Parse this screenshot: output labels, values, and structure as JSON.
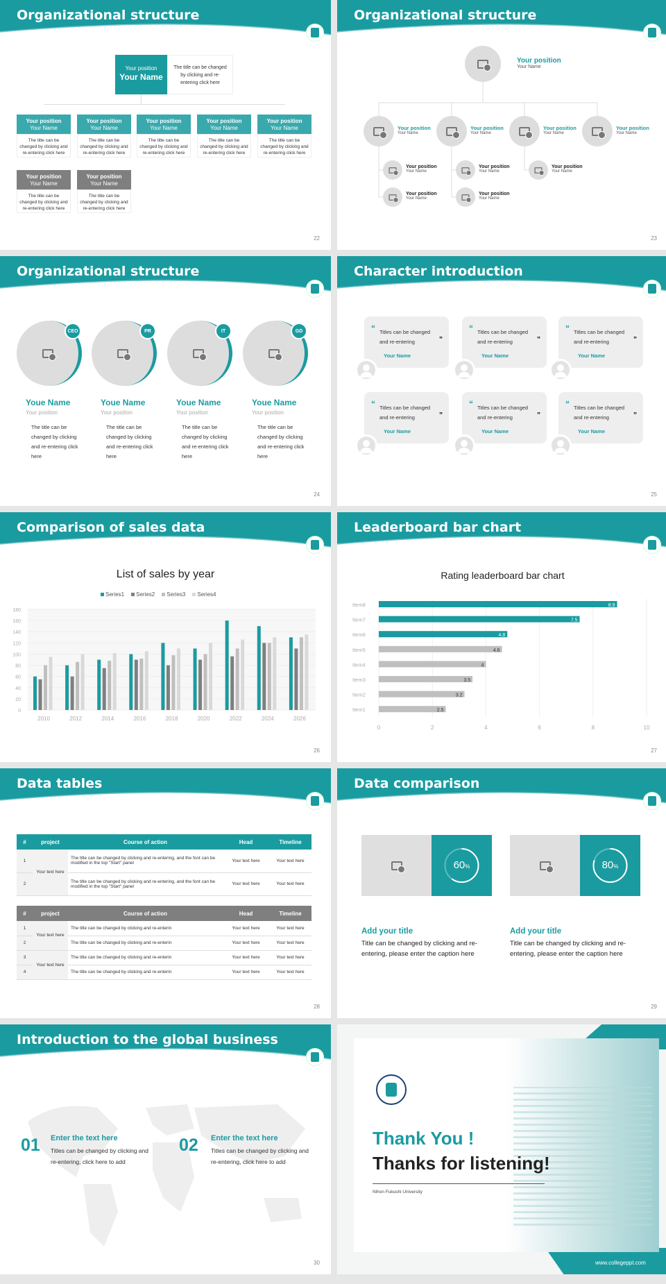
{
  "colors": {
    "accent": "#1a9ba0",
    "gray": "#7f7f7f",
    "light": "#e0e0e0"
  },
  "slides": {
    "s22": {
      "title": "Organizational structure",
      "page": "22",
      "top": {
        "position": "Your position",
        "name": "Your Name",
        "desc": "The title can be changed by clicking and re-entering click here"
      },
      "row1": [
        {
          "position": "Your position",
          "name": "Your Name",
          "desc": "The title can be changed by clicking and re-entering click here"
        },
        {
          "position": "Your position",
          "name": "Your Name",
          "desc": "The title can be changed by clicking and re-entering click here"
        },
        {
          "position": "Your position",
          "name": "Your Name",
          "desc": "The title can be changed by clicking and re-entering click here"
        },
        {
          "position": "Your position",
          "name": "Your Name",
          "desc": "The title can be changed by clicking and re-entering click here"
        },
        {
          "position": "Your position",
          "name": "Your Name",
          "desc": "The title can be changed by clicking and re-entering click here"
        }
      ],
      "row2": [
        {
          "position": "Your position",
          "name": "Your Name",
          "desc": "The title can be changed by clicking and re-entering click here"
        },
        {
          "position": "Your position",
          "name": "Your Name",
          "desc": "The title can be changed by clicking and re-entering click here"
        }
      ]
    },
    "s23": {
      "title": "Organizational structure",
      "page": "23",
      "top": {
        "position": "Your position",
        "name": "Your Name"
      },
      "level2": [
        {
          "position": "Your position",
          "name": "Your Name"
        },
        {
          "position": "Your position",
          "name": "Your Name"
        },
        {
          "position": "Your position",
          "name": "Your Name"
        },
        {
          "position": "Your position",
          "name": "Your Name"
        }
      ],
      "level3": [
        {
          "position": "Your position",
          "name": "Your Name"
        },
        {
          "position": "Your position",
          "name": "Your Name"
        },
        {
          "position": "Your position",
          "name": "Your Name"
        },
        {
          "position": "Your position",
          "name": "Your Name"
        },
        {
          "position": "Your position",
          "name": "Your Name"
        }
      ]
    },
    "s24": {
      "title": "Organizational structure",
      "page": "24",
      "people": [
        {
          "badge": "CEO",
          "name": "Youe Name",
          "position": "Your position",
          "desc": "The title can be changed by clicking and re-entering click here"
        },
        {
          "badge": "PR",
          "name": "Youe Name",
          "position": "Your position",
          "desc": "The title can be changed by clicking and re-entering click here"
        },
        {
          "badge": "IT",
          "name": "Youe Name",
          "position": "Your position",
          "desc": "The title can be changed by clicking and re-entering click here"
        },
        {
          "badge": "GD",
          "name": "Youe Name",
          "position": "Your position",
          "desc": "The title can be changed by clicking and re-entering click here"
        }
      ]
    },
    "s25": {
      "title": "Character introduction",
      "page": "25",
      "cards": [
        {
          "text": "Titles can be changed and re-entering",
          "name": "Your Name"
        },
        {
          "text": "Titles can be changed and re-entering",
          "name": "Your Name"
        },
        {
          "text": "Titles can be changed and re-entering",
          "name": "Your Name"
        },
        {
          "text": "Titles can be changed and re-entering",
          "name": "Your Name"
        },
        {
          "text": "Titles can be changed and re-entering",
          "name": "Your Name"
        },
        {
          "text": "Titles can be changed and re-entering",
          "name": "Your Name"
        }
      ]
    },
    "s26": {
      "title": "Comparison of sales data",
      "page": "26"
    },
    "s27": {
      "title": "Leaderboard bar chart",
      "page": "27"
    },
    "s28": {
      "title": "Data tables",
      "page": "28",
      "headers": [
        "#",
        "project",
        "Course of action",
        "Head",
        "Timeline"
      ],
      "t1": {
        "project": "Your text here",
        "rows": [
          {
            "n": "1",
            "action": "The title can be changed by clicking and re-entering, and the font can be modified in the top \"Start\" panel",
            "head": "Your text here",
            "timeline": "Your text here"
          },
          {
            "n": "2",
            "action": "The title can be changed by clicking and re-entering, and the font can be modified in the top \"Start\" panel",
            "head": "Your text here",
            "timeline": "Your text here"
          }
        ]
      },
      "t2": {
        "projects": [
          "Your text here",
          "Your text here"
        ],
        "rows": [
          {
            "n": "1",
            "action": "The title can be changed by clicking and re-enterin",
            "head": "Your text here",
            "timeline": "Your text here"
          },
          {
            "n": "2",
            "action": "The title can be changed by clicking and re-enterin",
            "head": "Your text here",
            "timeline": "Your text here"
          },
          {
            "n": "3",
            "action": "The title can be changed by clicking and re-enterin",
            "head": "Your text here",
            "timeline": "Your text here"
          },
          {
            "n": "4",
            "action": "The title can be changed by clicking and re-enterin",
            "head": "Your text here",
            "timeline": "Your text here"
          }
        ]
      }
    },
    "s29": {
      "title": "Data comparison",
      "page": "29",
      "items": [
        {
          "percent": 60,
          "label": "60",
          "unit": "%",
          "title": "Add your title",
          "desc": "Title can be changed by clicking and re-entering, please enter the caption here"
        },
        {
          "percent": 80,
          "label": "80",
          "unit": "%",
          "title": "Add your title",
          "desc": "Title can be changed by clicking and re-entering, please enter the caption here"
        }
      ]
    },
    "s30": {
      "title": "Introduction to the global business",
      "page": "30",
      "items": [
        {
          "num": "01",
          "title": "Enter the text here",
          "desc": "Titles can be changed by clicking and re-entering, click here to add"
        },
        {
          "num": "02",
          "title": "Enter the text here",
          "desc": "Titles can be changed by clicking and re-entering, click here to add"
        }
      ]
    },
    "s31": {
      "thanks": "Thank You !",
      "listening": "Thanks for listening!",
      "university": "Nihon Fukushi University",
      "logo_text": "NIHON FUKUSHI UNIVERSITY",
      "url": "www.collegeppt.com"
    }
  },
  "chart_data": [
    {
      "type": "bar",
      "title": "List of sales by year",
      "categories": [
        "2010",
        "2012",
        "2014",
        "2016",
        "2018",
        "2020",
        "2022",
        "2024",
        "2026"
      ],
      "series": [
        {
          "name": "Series1",
          "color": "#1a9ba0",
          "values": [
            60,
            80,
            90,
            100,
            120,
            110,
            160,
            150,
            130
          ]
        },
        {
          "name": "Series2",
          "color": "#7f7f7f",
          "values": [
            55,
            60,
            75,
            90,
            80,
            90,
            96,
            120,
            110
          ]
        },
        {
          "name": "Series3",
          "color": "#bfbfbf",
          "values": [
            80,
            86,
            88,
            92,
            98,
            100,
            110,
            120,
            130
          ]
        },
        {
          "name": "Series4",
          "color": "#d9d9d9",
          "values": [
            95,
            100,
            102,
            105,
            110,
            120,
            126,
            130,
            135
          ]
        }
      ],
      "ylim": [
        0,
        180
      ],
      "yticks": [
        "0",
        "20",
        "40",
        "60",
        "80",
        "100",
        "120",
        "140",
        "160",
        "180"
      ],
      "grid": true,
      "legend": "top"
    },
    {
      "type": "bar",
      "orientation": "horizontal",
      "title": "Rating leaderboard bar chart",
      "categories": [
        "Item8",
        "Item7",
        "Item6",
        "Item5",
        "Item4",
        "Item3",
        "Item2",
        "Item1"
      ],
      "values": [
        8.9,
        7.5,
        4.8,
        4.6,
        4,
        3.5,
        3.2,
        2.5
      ],
      "labels": [
        "8.9",
        "7.5",
        "4.8",
        "4.6",
        "4",
        "3.5",
        "3.2",
        "2.5"
      ],
      "colors": [
        "#1a9ba0",
        "#1a9ba0",
        "#1a9ba0",
        "#bfbfbf",
        "#bfbfbf",
        "#bfbfbf",
        "#bfbfbf",
        "#bfbfbf"
      ],
      "xlim": [
        0,
        10
      ],
      "xticks": [
        "0",
        "2",
        "4",
        "6",
        "8",
        "10"
      ],
      "grid": true
    }
  ]
}
